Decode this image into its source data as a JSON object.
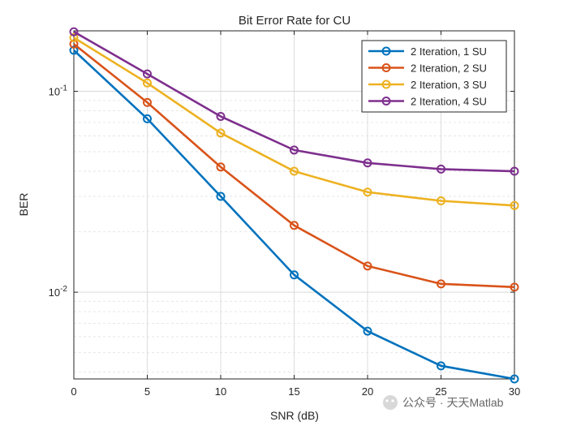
{
  "chart_data": {
    "type": "line",
    "title": "Bit Error Rate for CU",
    "xlabel": "SNR (dB)",
    "ylabel": "BER",
    "x": [
      0,
      5,
      10,
      15,
      20,
      25,
      30
    ],
    "xlim": [
      0,
      30
    ],
    "ylim": [
      0.0037,
      0.2
    ],
    "yscale": "log",
    "x_ticks": [
      "0",
      "5",
      "10",
      "15",
      "20",
      "25",
      "30"
    ],
    "y_ticks": [
      {
        "base": "10",
        "exp": "-1",
        "value": 0.1
      },
      {
        "base": "10",
        "exp": "-2",
        "value": 0.01
      }
    ],
    "grid": true,
    "legend_position": "top-right",
    "series": [
      {
        "name": "2 Iteration, 1 SU",
        "color": "#0072BD",
        "values": [
          0.16,
          0.073,
          0.03,
          0.0122,
          0.0064,
          0.0043,
          0.0037
        ]
      },
      {
        "name": "2 Iteration, 2 SU",
        "color": "#D95319",
        "values": [
          0.172,
          0.088,
          0.042,
          0.0215,
          0.0135,
          0.011,
          0.0106
        ]
      },
      {
        "name": "2 Iteration, 3 SU",
        "color": "#EDB120",
        "values": [
          0.185,
          0.11,
          0.062,
          0.04,
          0.0315,
          0.0285,
          0.027
        ]
      },
      {
        "name": "2 Iteration, 4 SU",
        "color": "#7E2F8E",
        "values": [
          0.198,
          0.122,
          0.075,
          0.051,
          0.044,
          0.041,
          0.04
        ]
      }
    ]
  },
  "watermark": {
    "text": "公众号 · 天天Matlab"
  }
}
